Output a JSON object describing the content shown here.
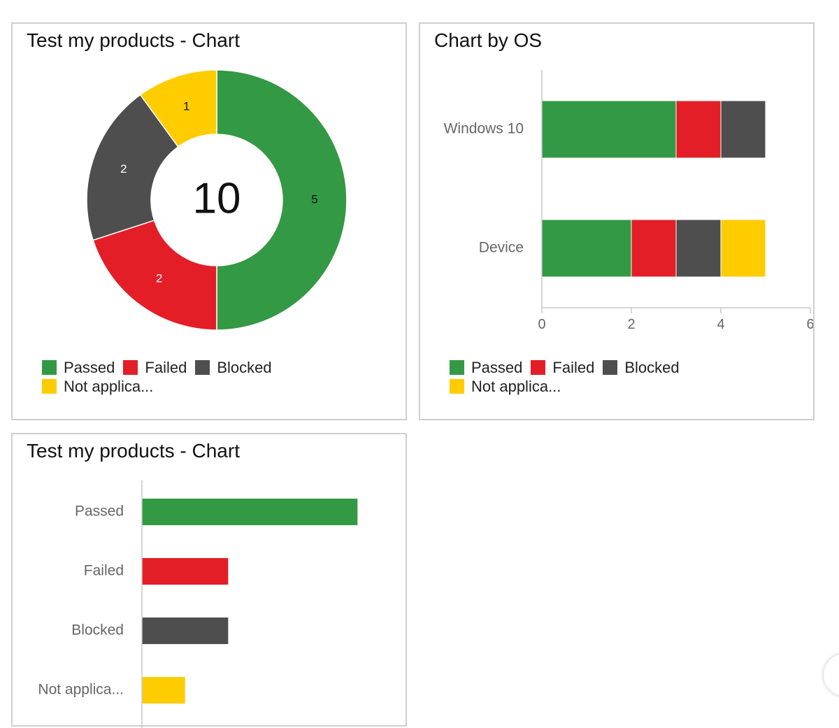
{
  "colors": {
    "passed": "#339944",
    "failed": "#e31e27",
    "blocked": "#4e4e4e",
    "not_applicable": "#ffcc00",
    "axis": "#c8c8c8",
    "tick_text": "#666666"
  },
  "widgets": [
    {
      "title": "Test my products - Chart",
      "legend": {
        "row1": [
          "Passed",
          "Failed",
          "Blocked"
        ],
        "row2": [
          "Not applica..."
        ]
      }
    },
    {
      "title": "Chart by OS",
      "legend": {
        "row1": [
          "Passed",
          "Failed",
          "Blocked"
        ],
        "row2": [
          "Not applica..."
        ]
      }
    },
    {
      "title": "Test my products - Chart"
    }
  ],
  "chart_data": [
    {
      "type": "pie",
      "variant": "donut",
      "title": "Test my products - Chart",
      "center_label": "10",
      "slices": [
        {
          "label": "Passed",
          "value": 5,
          "color": "#339944"
        },
        {
          "label": "Failed",
          "value": 2,
          "color": "#e31e27"
        },
        {
          "label": "Blocked",
          "value": 2,
          "color": "#4e4e4e"
        },
        {
          "label": "Not applica...",
          "value": 1,
          "color": "#ffcc00"
        }
      ],
      "legend_position": "bottom"
    },
    {
      "type": "bar",
      "orientation": "horizontal",
      "stacked": true,
      "title": "Chart by OS",
      "categories": [
        "Windows 10",
        "Device"
      ],
      "series": [
        {
          "name": "Passed",
          "values": [
            3,
            2
          ],
          "color": "#339944"
        },
        {
          "name": "Failed",
          "values": [
            1,
            1
          ],
          "color": "#e31e27"
        },
        {
          "name": "Blocked",
          "values": [
            1,
            1
          ],
          "color": "#4e4e4e"
        },
        {
          "name": "Not applica...",
          "values": [
            0,
            1
          ],
          "color": "#ffcc00"
        }
      ],
      "xlim": [
        0,
        6
      ],
      "xticks": [
        "0",
        "2",
        "4",
        "6"
      ],
      "grid": false,
      "legend_position": "bottom"
    },
    {
      "type": "bar",
      "orientation": "horizontal",
      "title": "Test my products - Chart",
      "categories": [
        "Passed",
        "Failed",
        "Blocked",
        "Not applica..."
      ],
      "values": [
        5,
        2,
        2,
        1
      ],
      "colors": [
        "#339944",
        "#e31e27",
        "#4e4e4e",
        "#ffcc00"
      ],
      "xlim": [
        0,
        6
      ],
      "grid": false
    }
  ]
}
